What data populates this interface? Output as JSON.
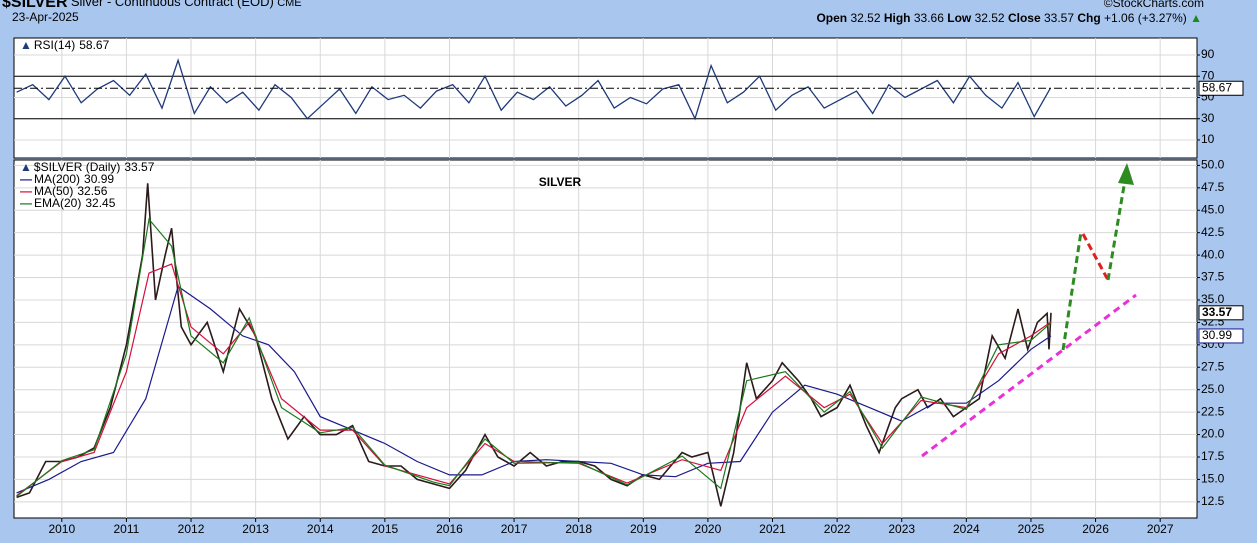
{
  "header": {
    "symbol": "$SILVER",
    "description": "Silver - Continuous Contract (EOD)",
    "exchange": "CME",
    "date": "23-Apr-2025",
    "credit": "©StockCharts.com",
    "quote": {
      "open_label": "Open",
      "open": "32.52",
      "high_label": "High",
      "high": "33.66",
      "low_label": "Low",
      "low": "32.52",
      "close_label": "Close",
      "close": "33.57",
      "chg_label": "Chg",
      "chg": "+1.06 (+3.27%)",
      "arrow": "▲"
    }
  },
  "chart_data": [
    {
      "type": "line",
      "title": "RSI(14)",
      "xlim": [
        2009.26,
        2027.57
      ],
      "xticks": [
        2010,
        2011,
        2012,
        2013,
        2014,
        2015,
        2016,
        2017,
        2018,
        2019,
        2020,
        2021,
        2022,
        2023,
        2024,
        2025,
        2026,
        2027
      ],
      "ylim": [
        -7,
        106
      ],
      "yticks": [
        10,
        30,
        50,
        70,
        90
      ],
      "levels": [
        70,
        30
      ],
      "grid": true,
      "series": [
        {
          "name": "RSI(14)",
          "color": "#1f3a7a",
          "value_box": true,
          "x": [
            2009.3,
            2009.55,
            2009.8,
            2010.05,
            2010.3,
            2010.55,
            2010.8,
            2011.05,
            2011.3,
            2011.55,
            2011.8,
            2012.05,
            2012.3,
            2012.55,
            2012.8,
            2013.05,
            2013.3,
            2013.55,
            2013.8,
            2014.05,
            2014.3,
            2014.55,
            2014.8,
            2015.05,
            2015.3,
            2015.55,
            2015.8,
            2016.05,
            2016.3,
            2016.55,
            2016.8,
            2017.05,
            2017.3,
            2017.55,
            2017.8,
            2018.05,
            2018.3,
            2018.55,
            2018.8,
            2019.05,
            2019.3,
            2019.55,
            2019.8,
            2020.05,
            2020.3,
            2020.55,
            2020.8,
            2021.05,
            2021.3,
            2021.55,
            2021.8,
            2022.05,
            2022.3,
            2022.55,
            2022.8,
            2023.05,
            2023.3,
            2023.55,
            2023.8,
            2024.05,
            2024.3,
            2024.55,
            2024.8,
            2025.05,
            2025.3
          ],
          "values": [
            55,
            62,
            48,
            70,
            45,
            58,
            66,
            52,
            72,
            40,
            85,
            35,
            60,
            45,
            55,
            38,
            62,
            50,
            30,
            44,
            58,
            35,
            60,
            48,
            52,
            40,
            56,
            62,
            45,
            70,
            38,
            55,
            48,
            60,
            42,
            52,
            66,
            40,
            50,
            44,
            58,
            62,
            30,
            80,
            45,
            55,
            70,
            38,
            52,
            60,
            40,
            48,
            56,
            35,
            62,
            50,
            58,
            66,
            45,
            70,
            52,
            40,
            64,
            32,
            58.67
          ]
        }
      ]
    },
    {
      "type": "line",
      "title": "SILVER",
      "xaxis": "bottom",
      "legend": "top-left",
      "grid": true,
      "xlim": [
        2009.26,
        2027.57
      ],
      "xticks": [
        2010,
        2011,
        2012,
        2013,
        2014,
        2015,
        2016,
        2017,
        2018,
        2019,
        2020,
        2021,
        2022,
        2023,
        2024,
        2025,
        2026,
        2027
      ],
      "ylim": [
        10.7,
        50.6
      ],
      "yticks": [
        12.5,
        {
          "value": 15,
          "label": "15.0"
        },
        17.5,
        {
          "value": 20,
          "label": "20.0"
        },
        22.5,
        {
          "value": 25,
          "label": "25.0"
        },
        27.5,
        {
          "value": 30,
          "label": "30.0"
        },
        32.5,
        {
          "value": 35,
          "label": "35.0"
        },
        37.5,
        {
          "value": 40,
          "label": "40.0"
        },
        42.5,
        {
          "value": 45,
          "label": "45.0"
        },
        47.5,
        {
          "value": 50,
          "label": "50.0"
        }
      ],
      "series": [
        {
          "name": "$SILVER (Daily)",
          "color": "#2a1a1a",
          "width": 1.6,
          "value_box": true,
          "x": [
            2009.3,
            2009.5,
            2009.75,
            2010.0,
            2010.25,
            2010.5,
            2010.75,
            2011.0,
            2011.25,
            2011.33,
            2011.45,
            2011.6,
            2011.7,
            2011.85,
            2012.0,
            2012.25,
            2012.5,
            2012.75,
            2013.0,
            2013.25,
            2013.5,
            2013.75,
            2014.0,
            2014.25,
            2014.5,
            2014.75,
            2015.0,
            2015.25,
            2015.5,
            2015.75,
            2016.0,
            2016.25,
            2016.55,
            2016.75,
            2017.0,
            2017.25,
            2017.5,
            2017.75,
            2018.0,
            2018.25,
            2018.5,
            2018.75,
            2019.0,
            2019.25,
            2019.6,
            2019.75,
            2020.0,
            2020.2,
            2020.4,
            2020.6,
            2020.75,
            2021.0,
            2021.15,
            2021.4,
            2021.6,
            2021.75,
            2022.0,
            2022.2,
            2022.45,
            2022.65,
            2022.9,
            2023.0,
            2023.25,
            2023.4,
            2023.6,
            2023.8,
            2024.0,
            2024.2,
            2024.4,
            2024.6,
            2024.8,
            2024.95,
            2025.1,
            2025.25,
            2025.28,
            2025.31
          ],
          "values": [
            13,
            13.5,
            17,
            17,
            17.5,
            18.5,
            23,
            30,
            40,
            48,
            35,
            40,
            43,
            32,
            30,
            32.5,
            27,
            34,
            31,
            24,
            19.5,
            22,
            20,
            20,
            21,
            17,
            16.5,
            16.5,
            15,
            14.5,
            14,
            16,
            20,
            17.5,
            16.5,
            18,
            16.5,
            17,
            17,
            16.5,
            15,
            14.3,
            15.5,
            15,
            18,
            17.5,
            18,
            12,
            18,
            28,
            24,
            26,
            28,
            26,
            24,
            22,
            23,
            25.5,
            21,
            18,
            23,
            24,
            25,
            23,
            24,
            22,
            23,
            24,
            31,
            28.5,
            34,
            29.5,
            32.5,
            33.5,
            29.5,
            33.57
          ]
        },
        {
          "name": "MA(200)",
          "color": "#1a1a8c",
          "width": 1.2,
          "value_box": true,
          "x": [
            2009.3,
            2009.8,
            2010.3,
            2010.8,
            2011.3,
            2011.8,
            2012.3,
            2012.8,
            2013.2,
            2013.6,
            2014.0,
            2014.5,
            2015.0,
            2015.5,
            2016.0,
            2016.5,
            2017.0,
            2017.5,
            2018.0,
            2018.5,
            2019.0,
            2019.5,
            2020.0,
            2020.5,
            2021.0,
            2021.5,
            2022.0,
            2022.5,
            2023.0,
            2023.5,
            2024.0,
            2024.5,
            2025.0,
            2025.31
          ],
          "values": [
            13.5,
            15,
            17,
            18,
            24,
            36.5,
            34,
            31,
            30,
            27,
            22,
            20.5,
            19,
            17,
            15.5,
            15.5,
            17,
            17.2,
            17,
            16.8,
            15.5,
            15.3,
            16.8,
            17,
            22.5,
            25.5,
            24.5,
            23,
            21.5,
            23.5,
            23.5,
            26,
            29.5,
            30.99
          ]
        },
        {
          "name": "MA(50)",
          "color": "#d40f3c",
          "width": 1.2,
          "x": [
            2009.3,
            2010.0,
            2010.5,
            2011.0,
            2011.35,
            2011.7,
            2012.0,
            2012.5,
            2012.9,
            2013.4,
            2014.0,
            2014.5,
            2015.0,
            2015.75,
            2016.0,
            2016.55,
            2017.0,
            2018.0,
            2018.75,
            2019.6,
            2020.2,
            2020.6,
            2021.2,
            2021.8,
            2022.2,
            2022.7,
            2023.3,
            2024.0,
            2024.5,
            2025.0,
            2025.31
          ],
          "values": [
            13.2,
            17,
            18,
            27,
            38,
            39,
            32,
            29,
            32.5,
            24,
            20.5,
            20.5,
            16.5,
            15,
            14.5,
            19,
            17,
            16.8,
            14.6,
            17.2,
            16,
            23,
            26.5,
            23,
            24.5,
            19,
            23.8,
            23,
            29,
            31,
            32.56
          ]
        },
        {
          "name": "EMA(20)",
          "color": "#1b7a1b",
          "width": 1.2,
          "x": [
            2009.3,
            2010.0,
            2010.5,
            2011.0,
            2011.35,
            2011.7,
            2012.0,
            2012.5,
            2012.9,
            2013.4,
            2014.0,
            2014.5,
            2015.0,
            2015.75,
            2016.0,
            2016.55,
            2017.0,
            2018.0,
            2018.75,
            2019.6,
            2020.2,
            2020.6,
            2021.2,
            2021.8,
            2022.2,
            2022.7,
            2023.3,
            2024.0,
            2024.5,
            2025.0,
            2025.31
          ],
          "values": [
            13.1,
            17.1,
            18.3,
            29,
            44,
            41,
            31,
            28,
            33,
            23,
            20.2,
            20.8,
            16.6,
            14.7,
            14.3,
            19.5,
            16.8,
            16.9,
            14.4,
            17.6,
            14,
            26,
            27,
            22.5,
            24.8,
            18.5,
            24.2,
            22.8,
            30,
            30.5,
            32.45
          ]
        }
      ]
    }
  ]
}
